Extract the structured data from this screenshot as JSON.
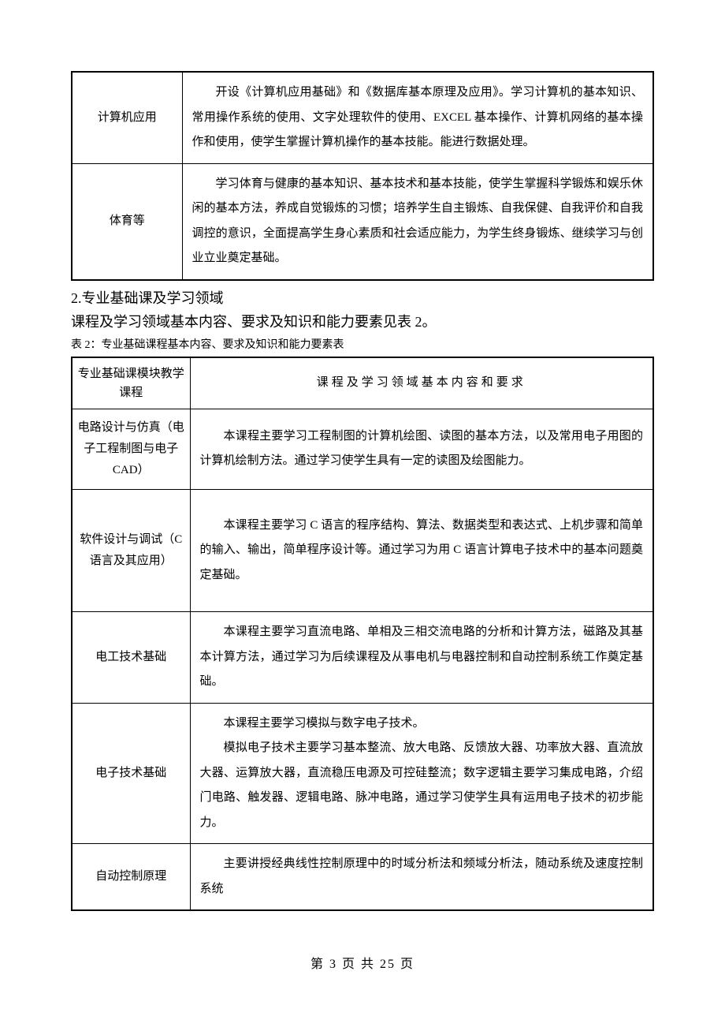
{
  "table1": {
    "rows": [
      {
        "label": "计算机应用",
        "content": "开设《计算机应用基础》和《数据库基本原理及应用》。学习计算机的基本知识、常用操作系统的使用、文字处理软件的使用、EXCEL 基本操作、计算机网络的基本操作和使用，使学生掌握计算机操作的基本技能。能进行数据处理。"
      },
      {
        "label": "体育等",
        "content": "学习体育与健康的基本知识、基本技术和基本技能，使学生掌握科学锻炼和娱乐休闲的基本方法，养成自觉锻炼的习惯；培养学生自主锻炼、自我保健、自我评价和自我调控的意识，全面提高学生身心素质和社会适应能力，为学生终身锻炼、继续学习与创业立业奠定基础。"
      }
    ]
  },
  "section_heading": "2.专业基础课及学习领域",
  "section_subtext": "课程及学习领域基本内容、要求及知识和能力要素见表 2。",
  "table2_caption": "表 2：专业基础课程基本内容、要求及知识和能力要素表",
  "table2": {
    "header_left": "专业基础课模块教学课程",
    "header_right": "课程及学习领域基本内容和要求",
    "rows": [
      {
        "label": "电路设计与仿真（电子工程制图与电子 CAD）",
        "content": "本课程主要学习工程制图的计算机绘图、读图的基本方法，以及常用电子用图的计算机绘制方法。通过学习使学生具有一定的读图及绘图能力。"
      },
      {
        "label": "软件设计与调试（C 语言及其应用）",
        "content": "本课程主要学习 C 语言的程序结构、算法、数据类型和表达式、上机步骤和简单的输入、输出，简单程序设计等。通过学习为用 C 语言计算电子技术中的基本问题奠定基础。"
      },
      {
        "label": "电工技术基础",
        "content": "本课程主要学习直流电路、单相及三相交流电路的分析和计算方法，磁路及其基本计算方法，通过学习为后续课程及从事电机与电器控制和自动控制系统工作奠定基础。"
      },
      {
        "label": "电子技术基础",
        "content_line1": "本课程主要学习模拟与数字电子技术。",
        "content_line2": "模拟电子技术主要学习基本整流、放大电路、反馈放大器、功率放大器、直流放大器、运算放大器，直流稳压电源及可控硅整流；数字逻辑主要学习集成电路，介绍门电路、触发器、逻辑电路、脉冲电路，通过学习使学生具有运用电子技术的初步能力。"
      },
      {
        "label": "自动控制原理",
        "content": "主要讲授经典线性控制原理中的时域分析法和频域分析法，随动系统及速度控制系统"
      }
    ]
  },
  "page_footer": "第 3 页 共 25 页"
}
